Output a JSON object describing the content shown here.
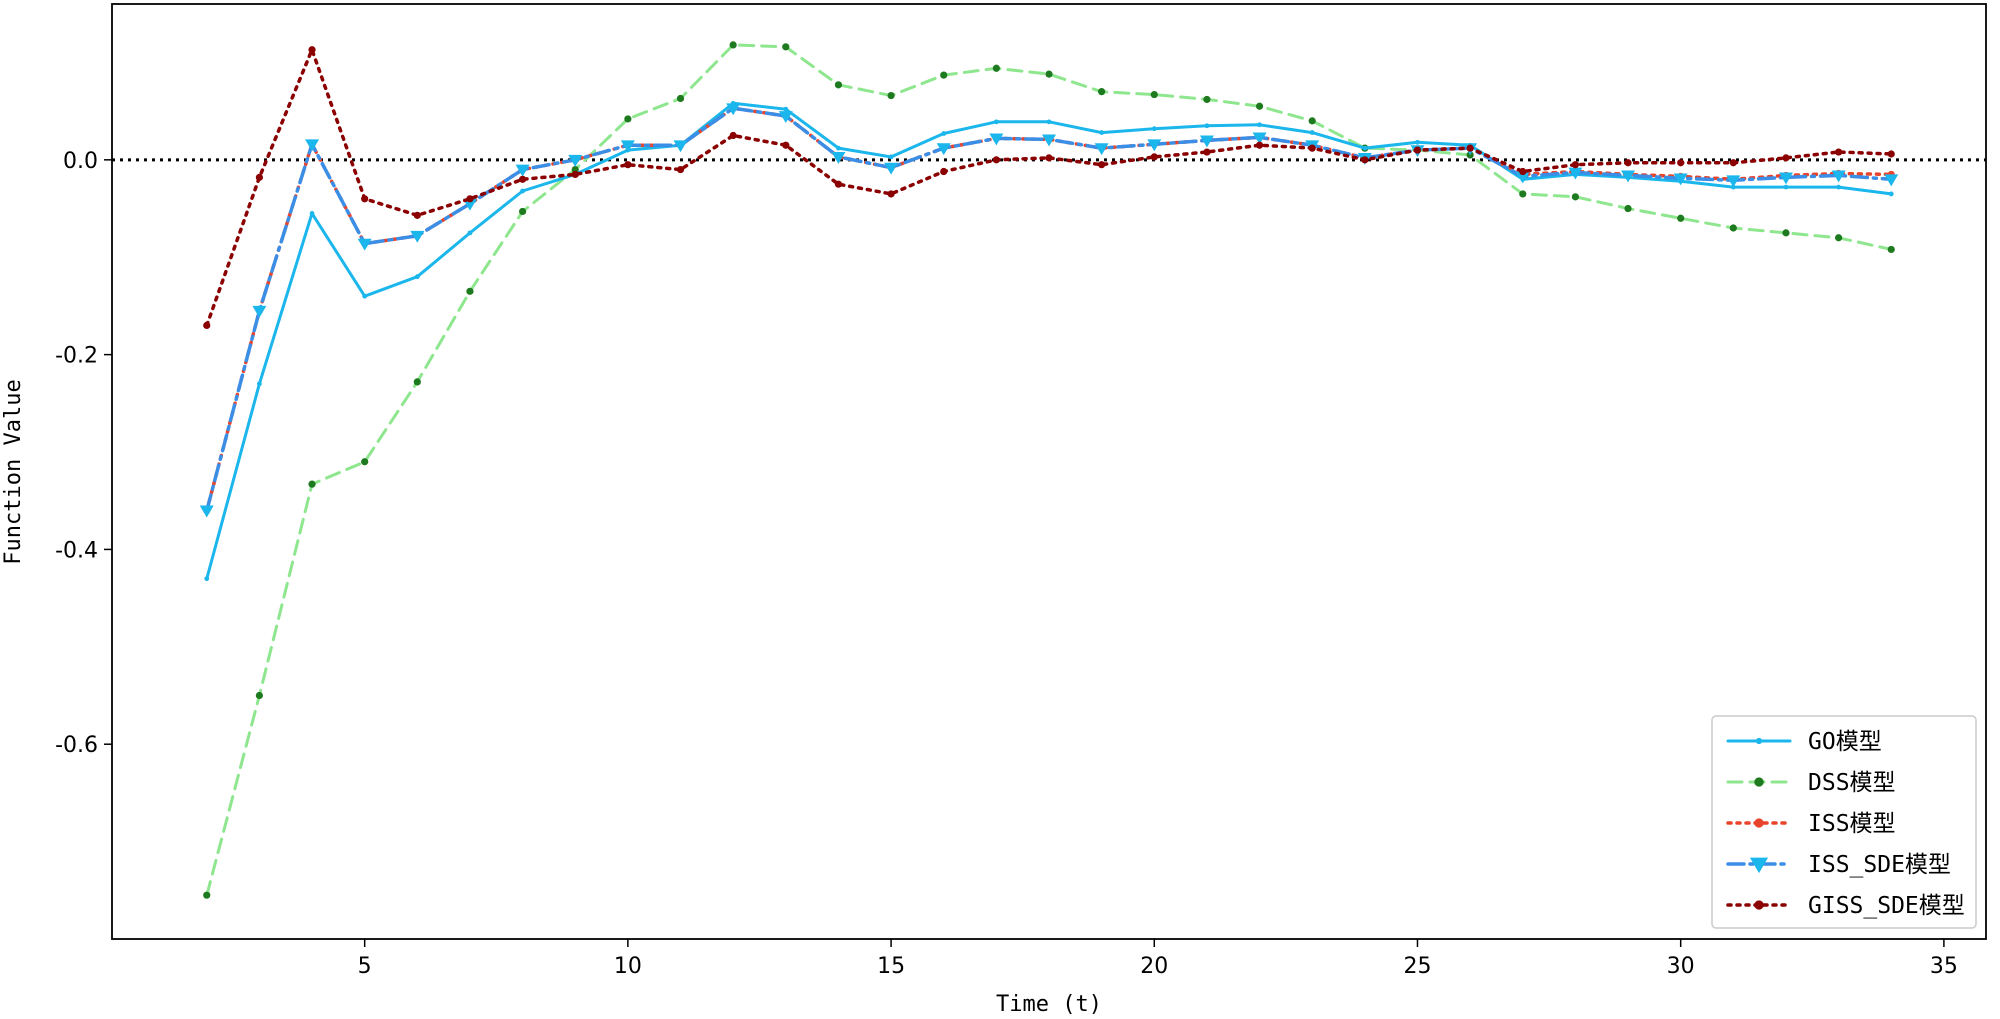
{
  "chart_data": {
    "type": "line",
    "title": "",
    "xlabel": "Time (t)",
    "ylabel": "Function Value",
    "xlim": [
      0.2,
      35.8
    ],
    "ylim": [
      -0.8,
      0.16
    ],
    "xticks": [
      5,
      10,
      15,
      20,
      25,
      30,
      35
    ],
    "xtick_labels": [
      "5",
      "10",
      "15",
      "20",
      "25",
      "30",
      "35"
    ],
    "yticks": [
      -0.6,
      -0.4,
      -0.2,
      0.0
    ],
    "ytick_labels": [
      "-0.6",
      "-0.4",
      "-0.2",
      "0.0"
    ],
    "grid": false,
    "reference_line": {
      "y": 0.0,
      "style": "dotted",
      "color": "#000000"
    },
    "legend_position": "lower-right",
    "x": [
      2,
      3,
      4,
      5,
      6,
      7,
      8,
      9,
      10,
      11,
      12,
      13,
      14,
      15,
      16,
      17,
      18,
      19,
      20,
      21,
      22,
      23,
      24,
      25,
      26,
      27,
      28,
      29,
      30,
      31,
      32,
      33,
      34
    ],
    "series": [
      {
        "name": "GO模型",
        "color": "#1bb6ec",
        "linestyle": "solid",
        "marker": "dot-small",
        "values": [
          -0.43,
          -0.23,
          -0.055,
          -0.14,
          -0.12,
          -0.075,
          -0.032,
          -0.015,
          0.01,
          0.015,
          0.058,
          0.052,
          0.012,
          0.003,
          0.027,
          0.039,
          0.039,
          0.028,
          0.032,
          0.035,
          0.036,
          0.028,
          0.012,
          0.018,
          0.015,
          -0.02,
          -0.015,
          -0.018,
          -0.022,
          -0.028,
          -0.028,
          -0.028,
          -0.035
        ]
      },
      {
        "name": "DSS模型",
        "color": "#8ee68e",
        "linestyle": "dashed",
        "marker": "dot-darkgreen",
        "marker_color": "#1e7a1e",
        "values": [
          -0.755,
          -0.55,
          -0.333,
          -0.31,
          -0.228,
          -0.135,
          -0.053,
          -0.01,
          0.042,
          0.063,
          0.118,
          0.116,
          0.077,
          0.066,
          0.087,
          0.094,
          0.088,
          0.07,
          0.067,
          0.062,
          0.055,
          0.04,
          0.012,
          0.01,
          0.005,
          -0.035,
          -0.038,
          -0.05,
          -0.06,
          -0.07,
          -0.075,
          -0.08,
          -0.092
        ]
      },
      {
        "name": "ISS模型",
        "color": "#e8442c",
        "linestyle": "dotted",
        "marker": "dot-red",
        "values": [
          -0.36,
          -0.155,
          0.016,
          -0.086,
          -0.078,
          -0.045,
          -0.01,
          0.0,
          0.015,
          0.015,
          0.053,
          0.045,
          0.003,
          -0.008,
          0.012,
          0.022,
          0.021,
          0.012,
          0.016,
          0.02,
          0.023,
          0.015,
          0.002,
          0.01,
          0.012,
          -0.015,
          -0.012,
          -0.015,
          -0.017,
          -0.02,
          -0.016,
          -0.014,
          -0.015
        ]
      },
      {
        "name": "ISS_SDE模型",
        "color": "#3a8ee6",
        "linestyle": "dashdot",
        "marker": "triangle-down",
        "marker_color": "#1bb6ec",
        "values": [
          -0.36,
          -0.155,
          0.016,
          -0.086,
          -0.078,
          -0.045,
          -0.01,
          0.0,
          0.015,
          0.015,
          0.053,
          0.045,
          0.003,
          -0.008,
          0.012,
          0.022,
          0.021,
          0.012,
          0.016,
          0.02,
          0.023,
          0.015,
          0.002,
          0.01,
          0.012,
          -0.017,
          -0.013,
          -0.016,
          -0.019,
          -0.021,
          -0.018,
          -0.016,
          -0.02
        ]
      },
      {
        "name": "GISS_SDE模型",
        "color": "#8b0000",
        "linestyle": "dotted",
        "marker": "dot-darkred",
        "values": [
          -0.17,
          -0.018,
          0.113,
          -0.04,
          -0.057,
          -0.04,
          -0.02,
          -0.015,
          -0.005,
          -0.01,
          0.025,
          0.015,
          -0.025,
          -0.035,
          -0.012,
          0.0,
          0.002,
          -0.005,
          0.003,
          0.008,
          0.015,
          0.012,
          0.0,
          0.01,
          0.012,
          -0.012,
          -0.005,
          -0.003,
          -0.003,
          -0.003,
          0.002,
          0.008,
          0.006
        ]
      }
    ]
  }
}
